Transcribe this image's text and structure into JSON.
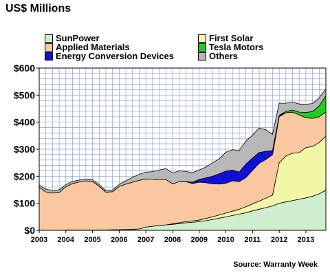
{
  "header": {
    "title": "US$ Millions"
  },
  "footer": {
    "source": "Source: Warranty Week"
  },
  "colors": {
    "sunpower": "#cfeecf",
    "first_solar": "#f2f7a8",
    "applied_materials": "#f9c8a0",
    "energy_conversion": "#1010d8",
    "tesla": "#1ecf1e",
    "others": "#b8b8b8",
    "grid": "#8aa0c8",
    "outline": "#000000"
  },
  "chart_data": {
    "type": "area",
    "stacked": true,
    "title": "US$ Millions",
    "xlabel": "",
    "ylabel": "",
    "xlim": [
      2003,
      2013.75
    ],
    "ylim": [
      0,
      600
    ],
    "x_ticks": [
      "2003",
      "2004",
      "2005",
      "2006",
      "2007",
      "2008",
      "2009",
      "2010",
      "2011",
      "2012",
      "2013"
    ],
    "y_ticks": [
      "$0",
      "$100",
      "$200",
      "$300",
      "$400",
      "$500",
      "$600"
    ],
    "grid": true,
    "legend_position": "top",
    "x": [
      2003,
      2003.25,
      2003.5,
      2003.75,
      2004,
      2004.25,
      2004.5,
      2004.75,
      2005,
      2005.25,
      2005.5,
      2005.75,
      2006,
      2006.25,
      2006.5,
      2006.75,
      2007,
      2007.25,
      2007.5,
      2007.75,
      2008,
      2008.25,
      2008.5,
      2008.75,
      2009,
      2009.25,
      2009.5,
      2009.75,
      2010,
      2010.25,
      2010.5,
      2010.75,
      2011,
      2011.25,
      2011.5,
      2011.75,
      2012,
      2012.25,
      2012.5,
      2012.75,
      2013,
      2013.25,
      2013.5,
      2013.75
    ],
    "series": [
      {
        "name": "SunPower",
        "color_key": "sunpower",
        "values": [
          0,
          0,
          0,
          0,
          1,
          1,
          1,
          1,
          1,
          1,
          1,
          2,
          2,
          3,
          4,
          5,
          12,
          15,
          18,
          20,
          22,
          25,
          28,
          30,
          32,
          36,
          40,
          45,
          50,
          55,
          60,
          65,
          72,
          78,
          84,
          90,
          100,
          105,
          110,
          115,
          120,
          126,
          135,
          148
        ]
      },
      {
        "name": "First Solar",
        "color_key": "first_solar",
        "values": [
          0,
          0,
          0,
          0,
          0,
          0,
          0,
          0,
          0,
          0,
          0,
          0,
          0,
          0,
          0,
          0,
          0,
          0,
          0,
          0,
          2,
          3,
          4,
          5,
          6,
          8,
          10,
          12,
          14,
          16,
          18,
          22,
          26,
          30,
          35,
          40,
          150,
          170,
          175,
          172,
          186,
          184,
          190,
          200
        ]
      },
      {
        "name": "Applied Materials",
        "color_key": "applied_materials",
        "values": [
          160,
          142,
          138,
          140,
          160,
          172,
          178,
          182,
          180,
          162,
          140,
          141,
          160,
          168,
          174,
          180,
          178,
          174,
          170,
          168,
          148,
          152,
          148,
          138,
          140,
          132,
          122,
          114,
          110,
          112,
          102,
          108,
          124,
          140,
          143,
          150,
          170,
          160,
          152,
          140,
          110,
          104,
          95,
          90
        ]
      },
      {
        "name": "Energy Conversion Devices",
        "color_key": "energy_conversion",
        "values": [
          0,
          0,
          0,
          0,
          0,
          0,
          0,
          0,
          0,
          0,
          0,
          0,
          0,
          0,
          0,
          0,
          0,
          0,
          0,
          0,
          0,
          0,
          0,
          5,
          10,
          18,
          28,
          38,
          45,
          40,
          35,
          50,
          45,
          40,
          30,
          15,
          5,
          0,
          0,
          0,
          0,
          0,
          0,
          0
        ]
      },
      {
        "name": "Tesla Motors",
        "color_key": "tesla",
        "values": [
          0,
          0,
          0,
          0,
          0,
          0,
          0,
          0,
          0,
          0,
          0,
          0,
          0,
          0,
          0,
          0,
          0,
          0,
          0,
          0,
          0,
          0,
          0,
          0,
          0,
          0,
          0,
          0,
          0,
          0,
          0,
          0,
          0,
          0,
          0,
          0,
          0,
          5,
          8,
          10,
          20,
          25,
          40,
          60
        ]
      },
      {
        "name": "Others",
        "color_key": "others",
        "values": [
          8,
          10,
          10,
          10,
          8,
          8,
          7,
          6,
          6,
          6,
          6,
          6,
          8,
          12,
          18,
          22,
          25,
          28,
          35,
          40,
          40,
          40,
          38,
          35,
          35,
          40,
          50,
          55,
          70,
          75,
          80,
          85,
          85,
          90,
          80,
          60,
          45,
          30,
          30,
          30,
          30,
          30,
          30,
          25
        ]
      }
    ]
  },
  "legend": [
    {
      "label": "SunPower",
      "color_key": "sunpower"
    },
    {
      "label": "First Solar",
      "color_key": "first_solar"
    },
    {
      "label": "Applied Materials",
      "color_key": "applied_materials"
    },
    {
      "label": "Tesla Motors",
      "color_key": "tesla"
    },
    {
      "label": "Energy Conversion Devices",
      "color_key": "energy_conversion"
    },
    {
      "label": "Others",
      "color_key": "others"
    }
  ]
}
